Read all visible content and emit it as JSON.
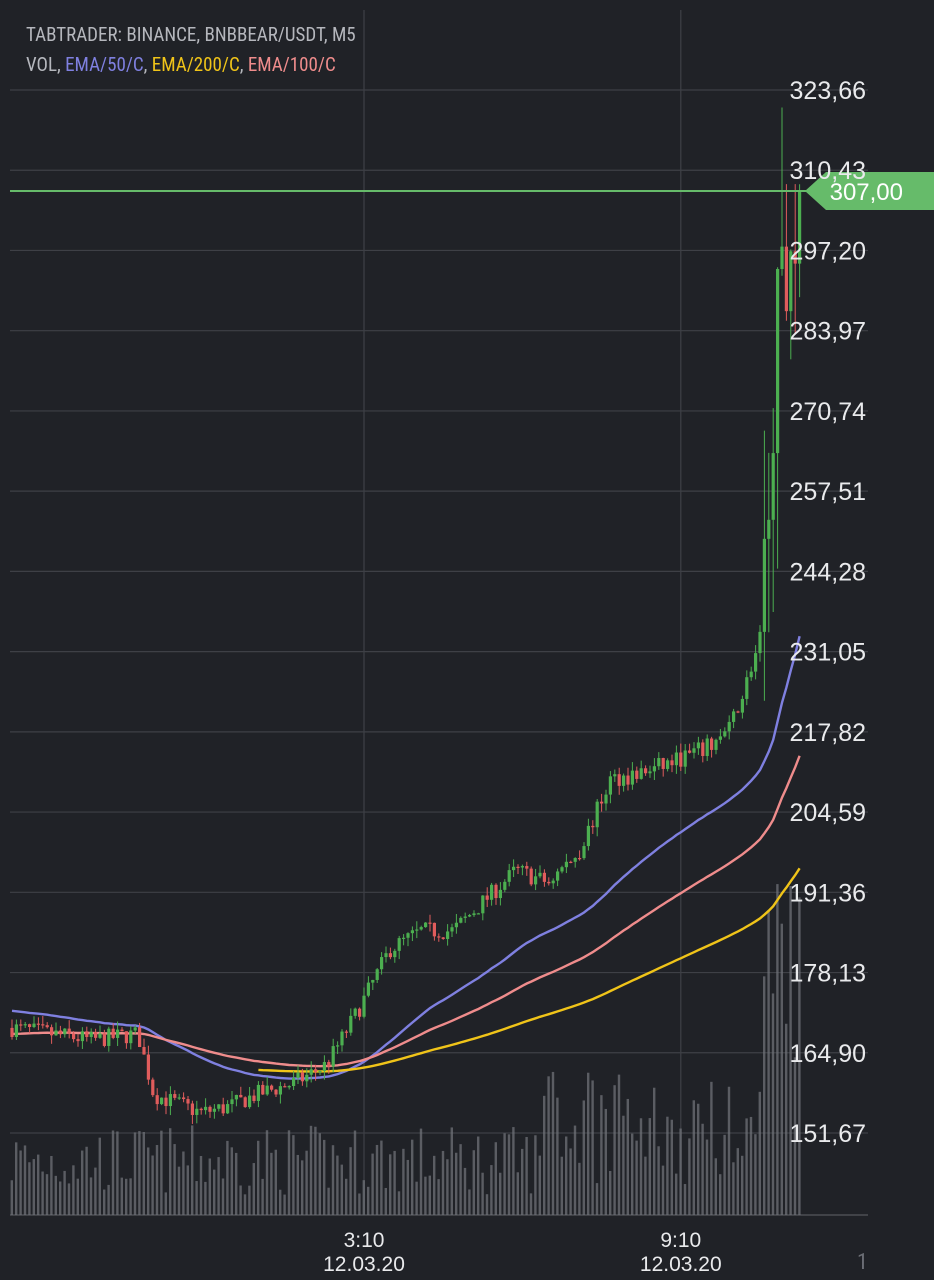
{
  "header": {
    "title": "TABTRADER: BINANCE, BNBBEAR/USDT, M5",
    "vol_label": "VOL",
    "sep": ", ",
    "indicators": [
      {
        "label": "EMA/50/C",
        "color": "#7f80e0"
      },
      {
        "label": "EMA/200/C",
        "color": "#f0c419"
      },
      {
        "label": "EMA/100/C",
        "color": "#ef8c8c"
      }
    ]
  },
  "colors": {
    "background": "#202227",
    "grid": "#3e4046",
    "up": "#4caf50",
    "down": "#e05c5c",
    "price_line": "#66bb6a",
    "volume": "#6f7178"
  },
  "chart_data": {
    "type": "candlestick",
    "y_ticks": [
      "323,66",
      "310,43",
      "297,20",
      "283,97",
      "270,74",
      "257,51",
      "244,28",
      "231,05",
      "217,82",
      "204,59",
      "191,36",
      "178,13",
      "164,90",
      "151,67"
    ],
    "y_tick_values": [
      323.66,
      310.43,
      297.2,
      283.97,
      270.74,
      257.51,
      244.28,
      231.05,
      217.82,
      204.59,
      191.36,
      178.13,
      164.9,
      151.67
    ],
    "x_ticks": [
      {
        "time": "3:10",
        "date": "12.03.20",
        "index": 80
      },
      {
        "time": "9:10",
        "date": "12.03.20",
        "index": 152
      }
    ],
    "candle_count": 180,
    "current_price": 307.0,
    "current_price_label": "307,00",
    "ema50_end": 233.0,
    "ema100_end": 215.5,
    "ema200_end": 198.0,
    "corner_label": "1"
  }
}
